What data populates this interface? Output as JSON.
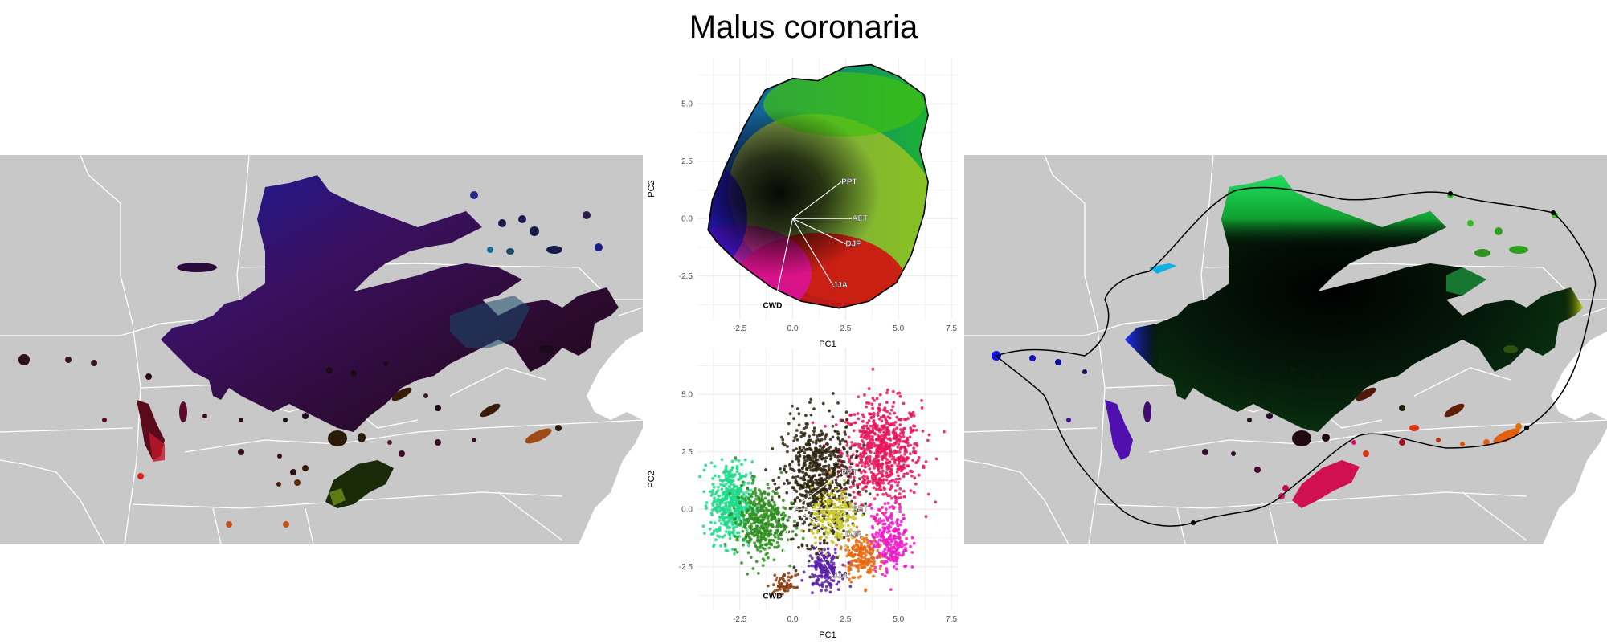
{
  "page": {
    "title": "Malus coronaria"
  },
  "colors": {
    "background": "#ffffff",
    "map_land": "#c8c8c8",
    "map_lines": "#ffffff",
    "plot_grid": "#ebebeb",
    "axis_text": "#4d4d4d",
    "hull_line": "#000000"
  },
  "chart_data": [
    {
      "type": "scatter",
      "panel": "pca-top",
      "xlabel": "PC1",
      "ylabel": "PC2",
      "xlim": [
        -4.5,
        7.8
      ],
      "ylim": [
        -4.4,
        7.0
      ],
      "xticks": [
        -2.5,
        0.0,
        2.5,
        5.0,
        7.5
      ],
      "xtick_labels": [
        "-2.5",
        "0.0",
        "2.5",
        "5.0",
        "7.5"
      ],
      "yticks": [
        -2.5,
        0.0,
        2.5,
        5.0
      ],
      "ytick_labels": [
        "-2.5",
        "0.0",
        "2.5",
        "5.0"
      ],
      "grid": true,
      "origin": [
        0,
        0
      ],
      "vectors": [
        {
          "label": "PPT",
          "x": 2.3,
          "y": 1.6
        },
        {
          "label": "AET",
          "x": 2.8,
          "y": 0.0
        },
        {
          "label": "DJF",
          "x": 2.5,
          "y": -1.1
        },
        {
          "label": "JJA",
          "x": 1.9,
          "y": -2.9
        },
        {
          "label": "CWD",
          "x": -0.8,
          "y": -3.5
        }
      ],
      "hull": [
        [
          -4.0,
          -0.5
        ],
        [
          -3.8,
          0.8
        ],
        [
          -3.2,
          2.2
        ],
        [
          -2.3,
          4.0
        ],
        [
          -1.3,
          5.6
        ],
        [
          0.0,
          6.1
        ],
        [
          1.2,
          6.0
        ],
        [
          2.5,
          6.6
        ],
        [
          3.7,
          6.7
        ],
        [
          5.0,
          6.2
        ],
        [
          6.2,
          5.4
        ],
        [
          6.4,
          4.5
        ],
        [
          6.0,
          3.0
        ],
        [
          6.4,
          1.6
        ],
        [
          6.2,
          0.2
        ],
        [
          5.6,
          -1.6
        ],
        [
          4.9,
          -2.8
        ],
        [
          3.6,
          -3.6
        ],
        [
          2.2,
          -3.9
        ],
        [
          0.4,
          -3.6
        ],
        [
          -1.0,
          -3.0
        ],
        [
          -2.6,
          -1.9
        ],
        [
          -3.6,
          -1.0
        ]
      ],
      "point_clusters": []
    },
    {
      "type": "scatter",
      "panel": "pca-bottom",
      "xlabel": "PC1",
      "ylabel": "PC2",
      "xlim": [
        -4.5,
        7.8
      ],
      "ylim": [
        -4.4,
        7.0
      ],
      "xticks": [
        -2.5,
        0.0,
        2.5,
        5.0,
        7.5
      ],
      "xtick_labels": [
        "-2.5",
        "0.0",
        "2.5",
        "5.0",
        "7.5"
      ],
      "yticks": [
        -2.5,
        0.0,
        2.5,
        5.0
      ],
      "ytick_labels": [
        "-2.5",
        "0.0",
        "2.5",
        "5.0"
      ],
      "grid": true,
      "origin": [
        0,
        0
      ],
      "vectors": [
        {
          "label": "PPT",
          "x": 2.3,
          "y": 1.6
        },
        {
          "label": "AET",
          "x": 2.8,
          "y": 0.0
        },
        {
          "label": "DJF",
          "x": 2.5,
          "y": -1.1
        },
        {
          "label": "JJA",
          "x": 1.9,
          "y": -2.9
        },
        {
          "label": "CWD",
          "x": -0.8,
          "y": -3.5
        }
      ],
      "hull": [],
      "point_clusters": [
        {
          "cx": 4.2,
          "cy": 2.5,
          "sx": 1.7,
          "sy": 2.0,
          "color": "#e8155a",
          "n": 700
        },
        {
          "cx": 1.2,
          "cy": 1.2,
          "sx": 1.5,
          "sy": 2.4,
          "color": "#2e2410",
          "n": 700
        },
        {
          "cx": -2.9,
          "cy": 0.3,
          "sx": 0.9,
          "sy": 1.6,
          "color": "#1ed98a",
          "n": 450
        },
        {
          "cx": -1.5,
          "cy": -0.5,
          "sx": 1.1,
          "sy": 1.4,
          "color": "#2f8f1e",
          "n": 400
        },
        {
          "cx": 4.6,
          "cy": -1.3,
          "sx": 0.8,
          "sy": 1.3,
          "color": "#f01ac8",
          "n": 260
        },
        {
          "cx": 3.2,
          "cy": -2.0,
          "sx": 0.7,
          "sy": 0.9,
          "color": "#e86a10",
          "n": 180
        },
        {
          "cx": 2.0,
          "cy": -0.4,
          "sx": 1.0,
          "sy": 1.1,
          "color": "#c9c928",
          "n": 200
        },
        {
          "cx": 1.5,
          "cy": -2.6,
          "sx": 0.7,
          "sy": 0.8,
          "color": "#5a1fa8",
          "n": 160
        },
        {
          "cx": -0.4,
          "cy": -3.3,
          "sx": 0.5,
          "sy": 0.4,
          "color": "#8a3c10",
          "n": 60
        }
      ]
    }
  ]
}
